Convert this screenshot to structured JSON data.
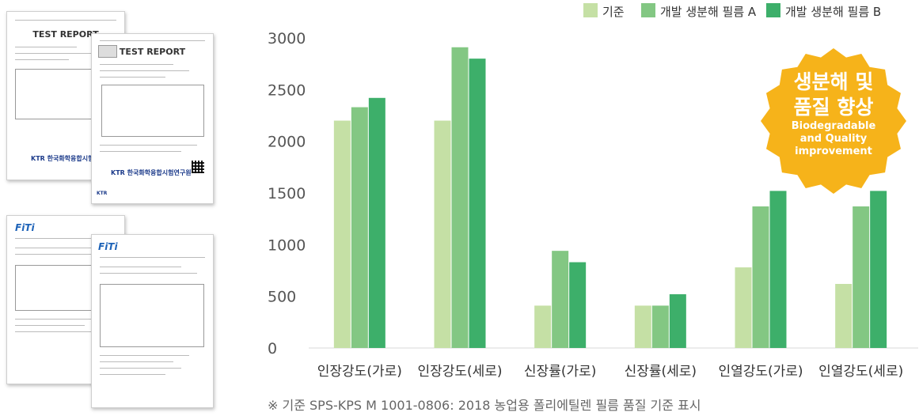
{
  "chart_data": {
    "type": "bar",
    "categories": [
      "인장강도(가로)",
      "인장강도(세로)",
      "신장률(가로)",
      "신장률(세로)",
      "인열강도(가로)",
      "인열강도(세로)"
    ],
    "series": [
      {
        "name": "기준",
        "color": "#c5e0a5",
        "values": [
          2200,
          2200,
          410,
          410,
          780,
          620
        ]
      },
      {
        "name": "개발 생분해 필름 A",
        "color": "#83c783",
        "values": [
          2330,
          2910,
          940,
          410,
          1370,
          1370
        ]
      },
      {
        "name": "개발 생분해 필름 B",
        "color": "#3daf6a",
        "values": [
          2420,
          2800,
          830,
          520,
          1520,
          1520
        ]
      }
    ],
    "ylim": [
      0,
      3000
    ],
    "yticks": [
      0,
      500,
      1000,
      1500,
      2000,
      2500,
      3000
    ],
    "grid": false,
    "legend_position": "top-right"
  },
  "badge": {
    "line1": "생분해 및",
    "line2": "품질 향상",
    "line3": "Biodegradable",
    "line4": "and Quality",
    "line5": "improvement",
    "color": "#f6b31a"
  },
  "footnote": "※ 기준 SPS-KPS M 1001-0806: 2018  농업용 폴리에틸렌 필름 품질 기준 표시",
  "docs": {
    "test_report_title": "TEST REPORT",
    "ktr_logo": "KTR 한국화학융합시험연구원",
    "ktr_short": "KTR",
    "fiti_logo": "FiTi"
  }
}
